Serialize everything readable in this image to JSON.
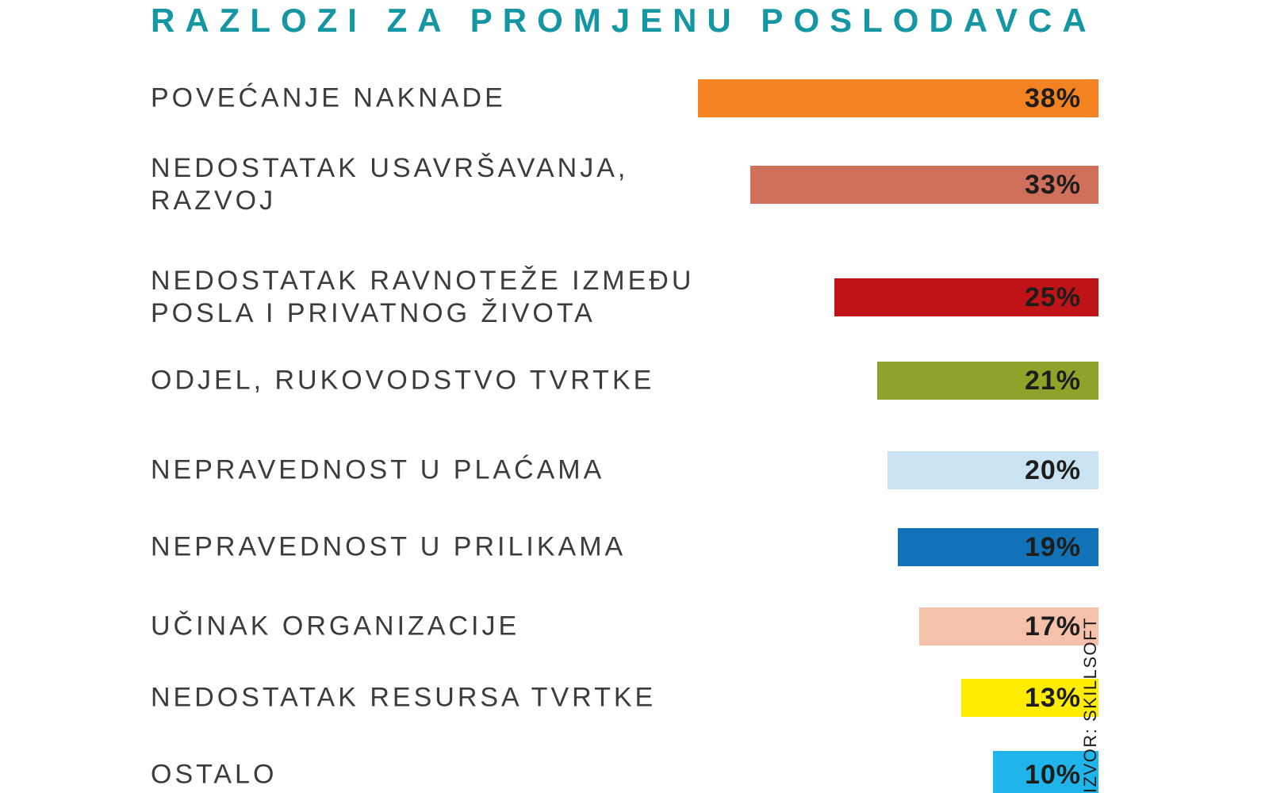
{
  "title": "RAZLOZI ZA PROMJENU POSLODAVCA",
  "title_color": "#1496A3",
  "label_color": "#3C3C3B",
  "value_text_color": "#1D1D1B",
  "source": {
    "text": "IZVOR: SKILLSOFT"
  },
  "chart_data": {
    "type": "bar",
    "orientation": "horizontal",
    "title": "RAZLOZI ZA PROMJENU POSLODAVCA",
    "unit": "%",
    "xlim": [
      0,
      40
    ],
    "bars_right_aligned": true,
    "value_labels_inside_bars": true,
    "categories": [
      "POVEĆANJE NAKNADE",
      "NEDOSTATAK USAVRŠAVANJA, RAZVOJ",
      "NEDOSTATAK RAVNOTEŽE IZMEĐU POSLA I PRIVATNOG ŽIVOTA",
      "ODJEL, RUKOVODSTVO TVRTKE",
      "NEPRAVEDNOST U PLAĆAMA",
      "NEPRAVEDNOST U PRILIKAMA",
      "UČINAK ORGANIZACIJE",
      "NEDOSTATAK RESURSA TVRTKE",
      "OSTALO"
    ],
    "values": [
      38,
      33,
      25,
      21,
      20,
      19,
      17,
      13,
      10
    ],
    "value_labels": [
      "38%",
      "33%",
      "25%",
      "21%",
      "20%",
      "19%",
      "17%",
      "13%",
      "10%"
    ],
    "bar_colors": [
      "#F58220",
      "#CE705A",
      "#C01318",
      "#8EA32A",
      "#C9E3F2",
      "#1172B8",
      "#F5C1AB",
      "#FFEC00",
      "#1FB4EA"
    ],
    "source": "IZVOR: SKILLSOFT"
  },
  "rows": [
    {
      "lines": [
        "POVEĆANJE NAKNADE"
      ],
      "value": 38,
      "value_label": "38%",
      "color": "#F58220"
    },
    {
      "lines": [
        "NEDOSTATAK USAVRŠAVANJA,",
        "RAZVOJ"
      ],
      "value": 33,
      "value_label": "33%",
      "color": "#CE705A"
    },
    {
      "lines": [
        "NEDOSTATAK RAVNOTEŽE IZMEĐU",
        "POSLA I PRIVATNOG ŽIVOTA"
      ],
      "value": 25,
      "value_label": "25%",
      "color": "#C01318"
    },
    {
      "lines": [
        "ODJEL, RUKOVODSTVO TVRTKE"
      ],
      "value": 21,
      "value_label": "21%",
      "color": "#8EA32A"
    },
    {
      "lines": [
        "NEPRAVEDNOST U PLAĆAMA"
      ],
      "value": 20,
      "value_label": "20%",
      "color": "#C9E3F2"
    },
    {
      "lines": [
        "NEPRAVEDNOST U PRILIKAMA"
      ],
      "value": 19,
      "value_label": "19%",
      "color": "#1172B8"
    },
    {
      "lines": [
        "UČINAK ORGANIZACIJE"
      ],
      "value": 17,
      "value_label": "17%",
      "color": "#F5C1AB"
    },
    {
      "lines": [
        "NEDOSTATAK RESURSA TVRTKE"
      ],
      "value": 13,
      "value_label": "13%",
      "color": "#FFEC00"
    },
    {
      "lines": [
        "OSTALO"
      ],
      "value": 10,
      "value_label": "10%",
      "color": "#1FB4EA"
    }
  ]
}
